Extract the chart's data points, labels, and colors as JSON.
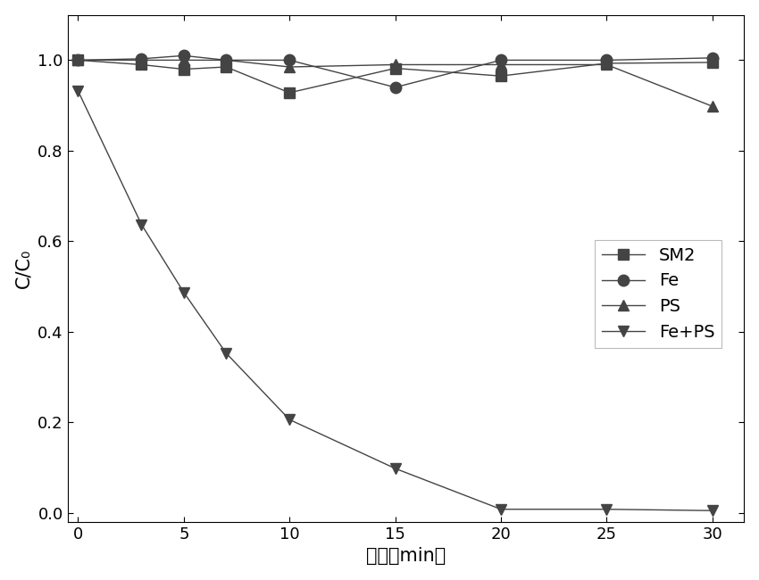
{
  "x_ticks": [
    0,
    5,
    10,
    15,
    20,
    25,
    30
  ],
  "series": [
    {
      "label": "SM2",
      "x": [
        0,
        3,
        5,
        7,
        10,
        15,
        20,
        25,
        30
      ],
      "y": [
        1.0,
        0.99,
        0.98,
        0.985,
        0.928,
        0.982,
        0.965,
        0.993,
        0.995
      ],
      "marker": "s",
      "color": "#444444",
      "linewidth": 1.0
    },
    {
      "label": "Fe",
      "x": [
        0,
        3,
        5,
        7,
        10,
        15,
        20,
        25,
        30
      ],
      "y": [
        1.0,
        1.003,
        1.01,
        1.0,
        1.0,
        0.94,
        1.0,
        1.0,
        1.005
      ],
      "marker": "o",
      "color": "#444444",
      "linewidth": 1.0
    },
    {
      "label": "PS",
      "x": [
        0,
        3,
        5,
        7,
        10,
        15,
        20,
        25,
        30
      ],
      "y": [
        1.0,
        1.0,
        1.0,
        1.0,
        0.985,
        0.99,
        0.99,
        0.99,
        0.898
      ],
      "marker": "^",
      "color": "#444444",
      "linewidth": 1.0
    },
    {
      "label": "Fe+PS",
      "x": [
        0,
        3,
        5,
        7,
        10,
        15,
        20,
        25,
        30
      ],
      "y": [
        0.932,
        0.637,
        0.487,
        0.353,
        0.206,
        0.098,
        0.008,
        0.008,
        0.005
      ],
      "marker": "v",
      "color": "#444444",
      "linewidth": 1.0
    }
  ],
  "xlabel": "时间（min）",
  "ylabel": "C/C₀",
  "xlim": [
    -0.5,
    31.5
  ],
  "ylim": [
    -0.02,
    1.1
  ],
  "yticks": [
    0.0,
    0.2,
    0.4,
    0.6,
    0.8,
    1.0
  ],
  "background_color": "#ffffff",
  "marker_size": 9,
  "font_size_label": 15,
  "font_size_tick": 13,
  "font_size_legend": 14
}
